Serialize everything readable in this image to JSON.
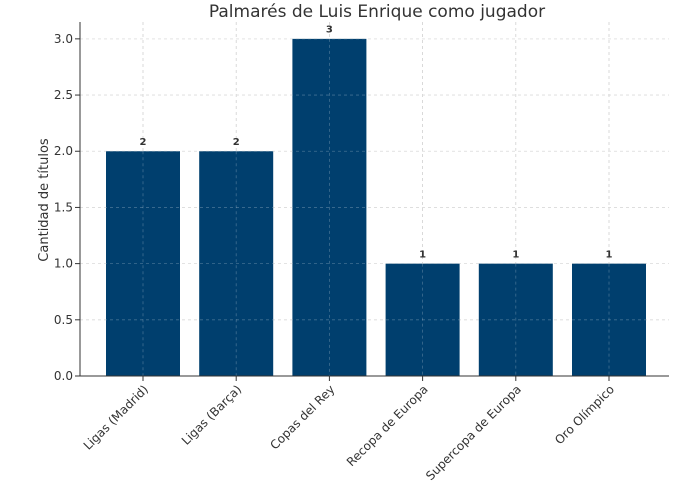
{
  "chart_data": {
    "type": "bar",
    "title": "Palmarés de Luis Enrique como jugador",
    "xlabel": "",
    "ylabel": "Cantidad de títulos",
    "categories": [
      "Ligas (Madrid)",
      "Ligas (Barça)",
      "Copas del Rey",
      "Recopa de Europa",
      "Supercopa de Europa",
      "Oro Olímpico"
    ],
    "values": [
      2,
      2,
      3,
      1,
      1,
      1
    ],
    "data_labels": [
      "2",
      "2",
      "3",
      "1",
      "1",
      "1"
    ],
    "yticks": [
      "0.0",
      "0.5",
      "1.0",
      "1.5",
      "2.0",
      "2.5",
      "3.0"
    ],
    "ylim": [
      0,
      3.15
    ],
    "grid": true,
    "bar_color": "#003f6e",
    "grid_color": "#d0d0d0",
    "axis_color": "#333333"
  }
}
